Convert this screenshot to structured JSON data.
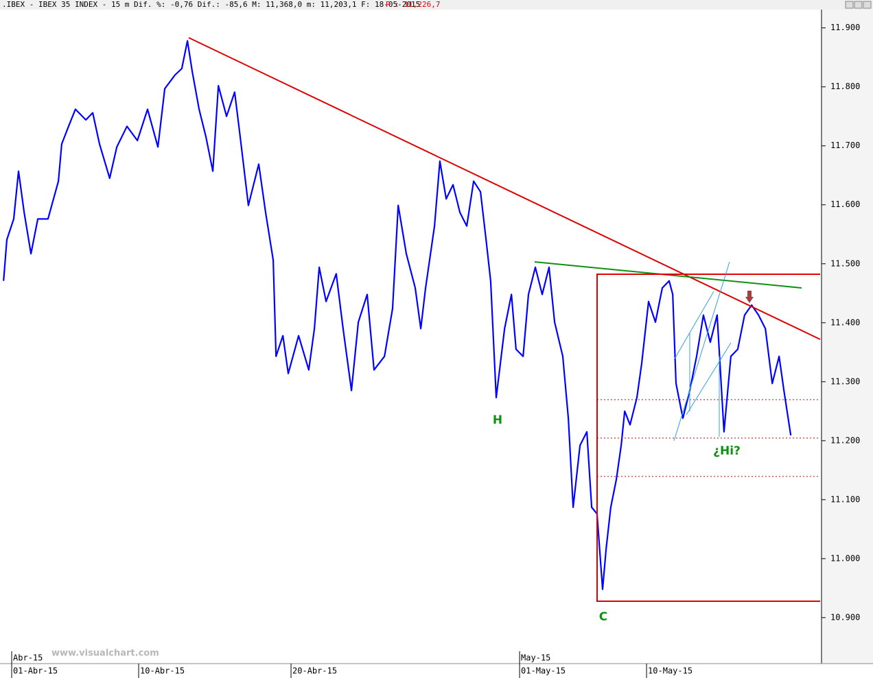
{
  "chart_data": {
    "type": "line",
    "title": ".IBEX - IBEX 35 INDEX -  15 m Dif. %: -0,76 Dif.: -85,6 M: 11,368,0 m: 11,203,1 F: 18-05-2015",
    "subtitle": "P : 11,226,7",
    "watermark": "www.visualchart.com",
    "color": "#0000ff",
    "x": [
      -0.32,
      -0.19,
      0.08,
      0.27,
      0.49,
      0.76,
      1.03,
      1.43,
      1.84,
      1.97,
      2.24,
      2.51,
      2.92,
      3.19,
      3.46,
      3.86,
      4.14,
      4.54,
      4.95,
      5.35,
      5.76,
      6.03,
      6.43,
      6.7,
      6.92,
      7.11,
      7.38,
      7.65,
      7.92,
      8.14,
      8.46,
      8.78,
      9.0,
      9.32,
      9.73,
      10.0,
      10.3,
      10.41,
      10.68,
      10.89,
      11.3,
      11.7,
      11.92,
      12.11,
      12.38,
      12.78,
      13.05,
      13.38,
      13.65,
      14.0,
      14.27,
      14.68,
      15.0,
      15.22,
      15.54,
      15.89,
      16.11,
      16.3,
      16.65,
      16.86,
      17.11,
      17.38,
      17.65,
      17.92,
      18.19,
      18.46,
      18.68,
      18.86,
      19.08,
      19.41,
      19.68,
      19.86,
      20.14,
      20.35,
      20.62,
      20.89,
      21.16,
      21.38,
      21.7,
      21.92,
      22.11,
      22.38,
      22.65,
      22.84,
      23.05,
      23.27,
      23.41,
      23.59,
      23.81,
      24.0,
      24.14,
      24.35,
      24.62,
      24.81,
      25.08,
      25.35,
      25.62,
      25.89,
      26.03,
      26.16,
      26.43,
      26.7,
      26.97,
      27.24,
      27.51,
      27.78,
      28.05,
      28.32,
      28.59,
      28.86,
      29.14,
      29.41,
      29.68,
      29.95,
      30.22,
      30.41,
      30.68
    ],
    "values": [
      11471,
      11541,
      11576,
      11657,
      11587,
      11517,
      11576,
      11576,
      11640,
      11703,
      11733,
      11762,
      11744,
      11756,
      11703,
      11645,
      11698,
      11733,
      11709,
      11762,
      11698,
      11797,
      11820,
      11831,
      11878,
      11826,
      11762,
      11715,
      11657,
      11802,
      11750,
      11791,
      11715,
      11599,
      11669,
      11587,
      11506,
      11343,
      11378,
      11314,
      11378,
      11320,
      11390,
      11494,
      11436,
      11483,
      11390,
      11285,
      11401,
      11448,
      11320,
      11343,
      11424,
      11599,
      11517,
      11459,
      11390,
      11459,
      11564,
      11674,
      11610,
      11634,
      11587,
      11564,
      11640,
      11622,
      11541,
      11471,
      11273,
      11390,
      11448,
      11355,
      11343,
      11448,
      11494,
      11448,
      11494,
      11401,
      11343,
      11238,
      11087,
      11192,
      11215,
      11087,
      11076,
      10948,
      11017,
      11087,
      11134,
      11192,
      11250,
      11227,
      11273,
      11331,
      11436,
      11401,
      11459,
      11471,
      11448,
      11297,
      11238,
      11285,
      11343,
      11413,
      11367,
      11413,
      11215,
      11343,
      11355,
      11413,
      11430,
      11413,
      11390,
      11297,
      11343,
      11285,
      11209
    ],
    "xlim": [
      -0.46,
      31.89
    ],
    "xticks": [
      {
        "value": 0,
        "label": "01-Abr-15"
      },
      {
        "value": 5,
        "label": "10-Abr-15"
      },
      {
        "value": 11,
        "label": "20-Abr-15"
      },
      {
        "value": 20,
        "label": "01-May-15"
      },
      {
        "value": 25,
        "label": "10-May-15"
      }
    ],
    "month_ticks": [
      {
        "value": 0,
        "label": "Abr-15"
      },
      {
        "value": 20,
        "label": "May-15"
      }
    ],
    "ylim": [
      10822,
      11931
    ],
    "yticks": [
      {
        "value": 11900,
        "label": "11.900"
      },
      {
        "value": 11800,
        "label": "11.800"
      },
      {
        "value": 11700,
        "label": "11.700"
      },
      {
        "value": 11600,
        "label": "11.600"
      },
      {
        "value": 11500,
        "label": "11.500"
      },
      {
        "value": 11400,
        "label": "11.400"
      },
      {
        "value": 11300,
        "label": "11.300"
      },
      {
        "value": 11200,
        "label": "11.200"
      },
      {
        "value": 11100,
        "label": "11.100"
      },
      {
        "value": 11000,
        "label": "11.000"
      },
      {
        "value": 10900,
        "label": "10.900"
      }
    ],
    "annotations": [
      "H",
      "C",
      "¿Hi?"
    ]
  }
}
